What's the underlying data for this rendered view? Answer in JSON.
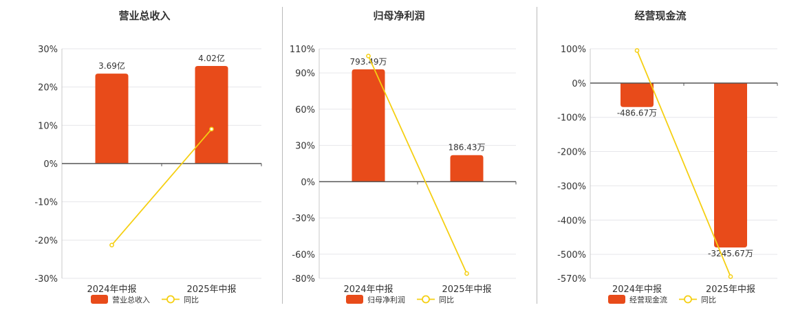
{
  "colors": {
    "bar": "#e84b1a",
    "line": "#f5cf12",
    "grid": "#e6e6ea",
    "axis": "#555555",
    "text": "#333333"
  },
  "chart_data": [
    {
      "type": "bar+line",
      "title": "营业总收入",
      "categories": [
        "2024年中报",
        "2025年中报"
      ],
      "bar_series": {
        "name": "营业总收入",
        "values": [
          23.5,
          25.5
        ],
        "labels": [
          "3.69亿",
          "4.02亿"
        ]
      },
      "line_series": {
        "name": "同比",
        "values": [
          -21.3,
          9.0
        ]
      },
      "yticks": [
        "30%",
        "20%",
        "10%",
        "0%",
        "-10%",
        "-20%",
        "-30%"
      ],
      "ytick_values": [
        30,
        20,
        10,
        0,
        -10,
        -20,
        -30
      ],
      "ylim": [
        -30,
        30
      ],
      "legend_position": "bottom"
    },
    {
      "type": "bar+line",
      "title": "归母净利润",
      "categories": [
        "2024年中报",
        "2025年中报"
      ],
      "bar_series": {
        "name": "归母净利润",
        "values": [
          93,
          22
        ],
        "labels": [
          "793.49万",
          "186.43万"
        ]
      },
      "line_series": {
        "name": "同比",
        "values": [
          104,
          -76
        ]
      },
      "yticks": [
        "110%",
        "90%",
        "60%",
        "30%",
        "0%",
        "-30%",
        "-60%",
        "-80%"
      ],
      "ytick_values": [
        110,
        90,
        60,
        30,
        0,
        -30,
        -60,
        -80
      ],
      "ylim": [
        -80,
        110
      ],
      "legend_position": "bottom"
    },
    {
      "type": "bar+line",
      "title": "经营现金流",
      "categories": [
        "2024年中报",
        "2025年中报"
      ],
      "bar_series": {
        "name": "经营现金流",
        "values": [
          -70,
          -480
        ],
        "labels": [
          "-486.67万",
          "-3245.67万"
        ]
      },
      "line_series": {
        "name": "同比",
        "values": [
          95,
          -565
        ]
      },
      "yticks": [
        "100%",
        "0%",
        "-100%",
        "-200%",
        "-300%",
        "-400%",
        "-500%",
        "-570%"
      ],
      "ytick_values": [
        100,
        0,
        -100,
        -200,
        -300,
        -400,
        -500,
        -570
      ],
      "ylim": [
        -570,
        100
      ],
      "legend_position": "bottom"
    }
  ]
}
